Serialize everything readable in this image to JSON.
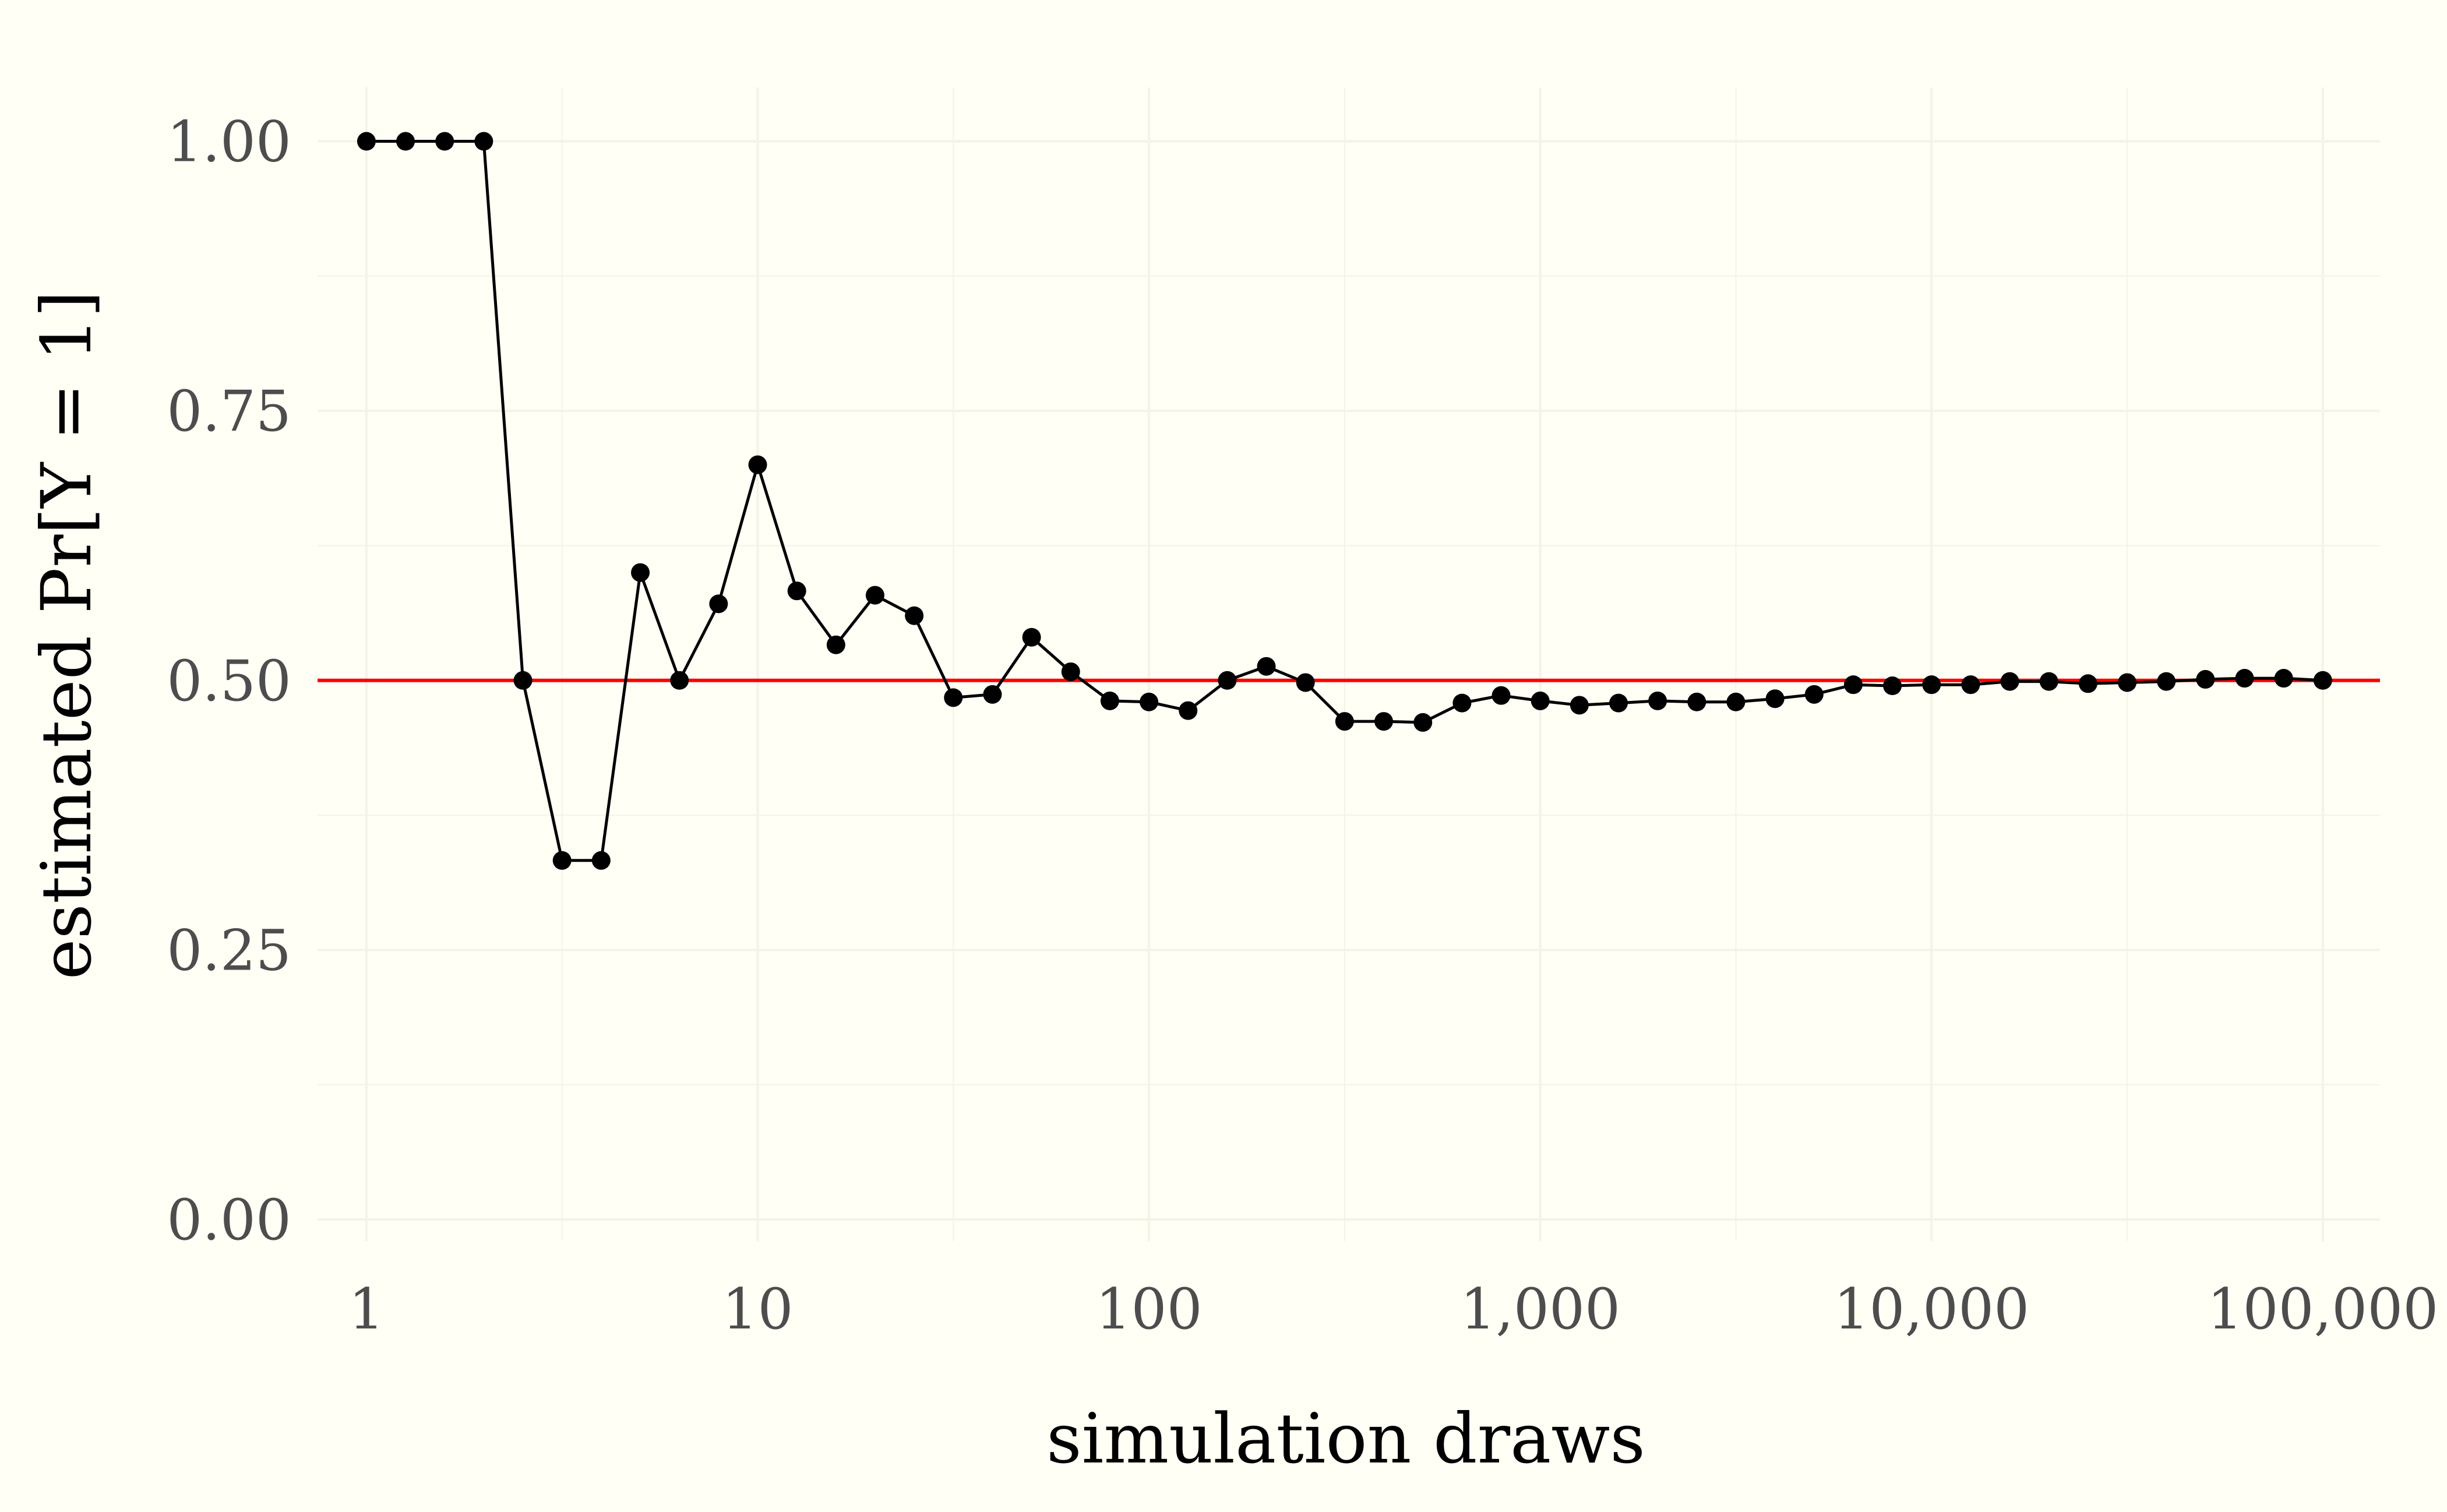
{
  "chart_data": {
    "type": "line",
    "title": "",
    "xlabel": "simulation draws",
    "ylabel": "estimated Pr[Y = 1]",
    "x_scale": "log10",
    "xlim": [
      0.75,
      140000
    ],
    "ylim": [
      -0.02,
      1.05
    ],
    "x_ticks": [
      1,
      10,
      100,
      1000,
      10000,
      100000
    ],
    "x_tick_labels": [
      "1",
      "10",
      "100",
      "1,000",
      "10,000",
      "100,000"
    ],
    "y_ticks": [
      0,
      0.25,
      0.5,
      0.75,
      1
    ],
    "y_tick_labels": [
      "0.00",
      "0.25",
      "0.50",
      "0.75",
      "1.00"
    ],
    "grid": true,
    "legend": "none",
    "colors": {
      "background": "#fffff6",
      "grid": "#f3f3e6",
      "series": "#000000",
      "reference": "#ff0000",
      "tick_text": "#4d4d4d"
    },
    "reference_line": {
      "y": 0.5
    },
    "series": [
      {
        "x": [
          1,
          1.259,
          1.585,
          1.995,
          2.512,
          3.162,
          3.981,
          5.012,
          6.31,
          7.943,
          10,
          12.59,
          15.85,
          19.95,
          25.12,
          31.62,
          39.81,
          50.12,
          63.1,
          79.43,
          100,
          125.9,
          158.5,
          199.5,
          251.2,
          316.2,
          398.1,
          501.2,
          631,
          794.3,
          1000,
          1259,
          1585,
          1995,
          2512,
          3162,
          3981,
          5012,
          6310,
          7943,
          10000,
          12589,
          15849,
          19953,
          25119,
          31623,
          39811,
          50119,
          63096,
          79433,
          100000
        ],
        "values": [
          1.0,
          1.0,
          1.0,
          1.0,
          0.5,
          0.333,
          0.333,
          0.6,
          0.5,
          0.571,
          0.7,
          0.583,
          0.533,
          0.579,
          0.56,
          0.484,
          0.487,
          0.54,
          0.508,
          0.481,
          0.48,
          0.472,
          0.5,
          0.513,
          0.498,
          0.462,
          0.462,
          0.461,
          0.479,
          0.486,
          0.481,
          0.477,
          0.479,
          0.481,
          0.48,
          0.48,
          0.483,
          0.487,
          0.496,
          0.495,
          0.496,
          0.496,
          0.499,
          0.499,
          0.497,
          0.498,
          0.499,
          0.501,
          0.502,
          0.502,
          0.5
        ]
      }
    ]
  }
}
